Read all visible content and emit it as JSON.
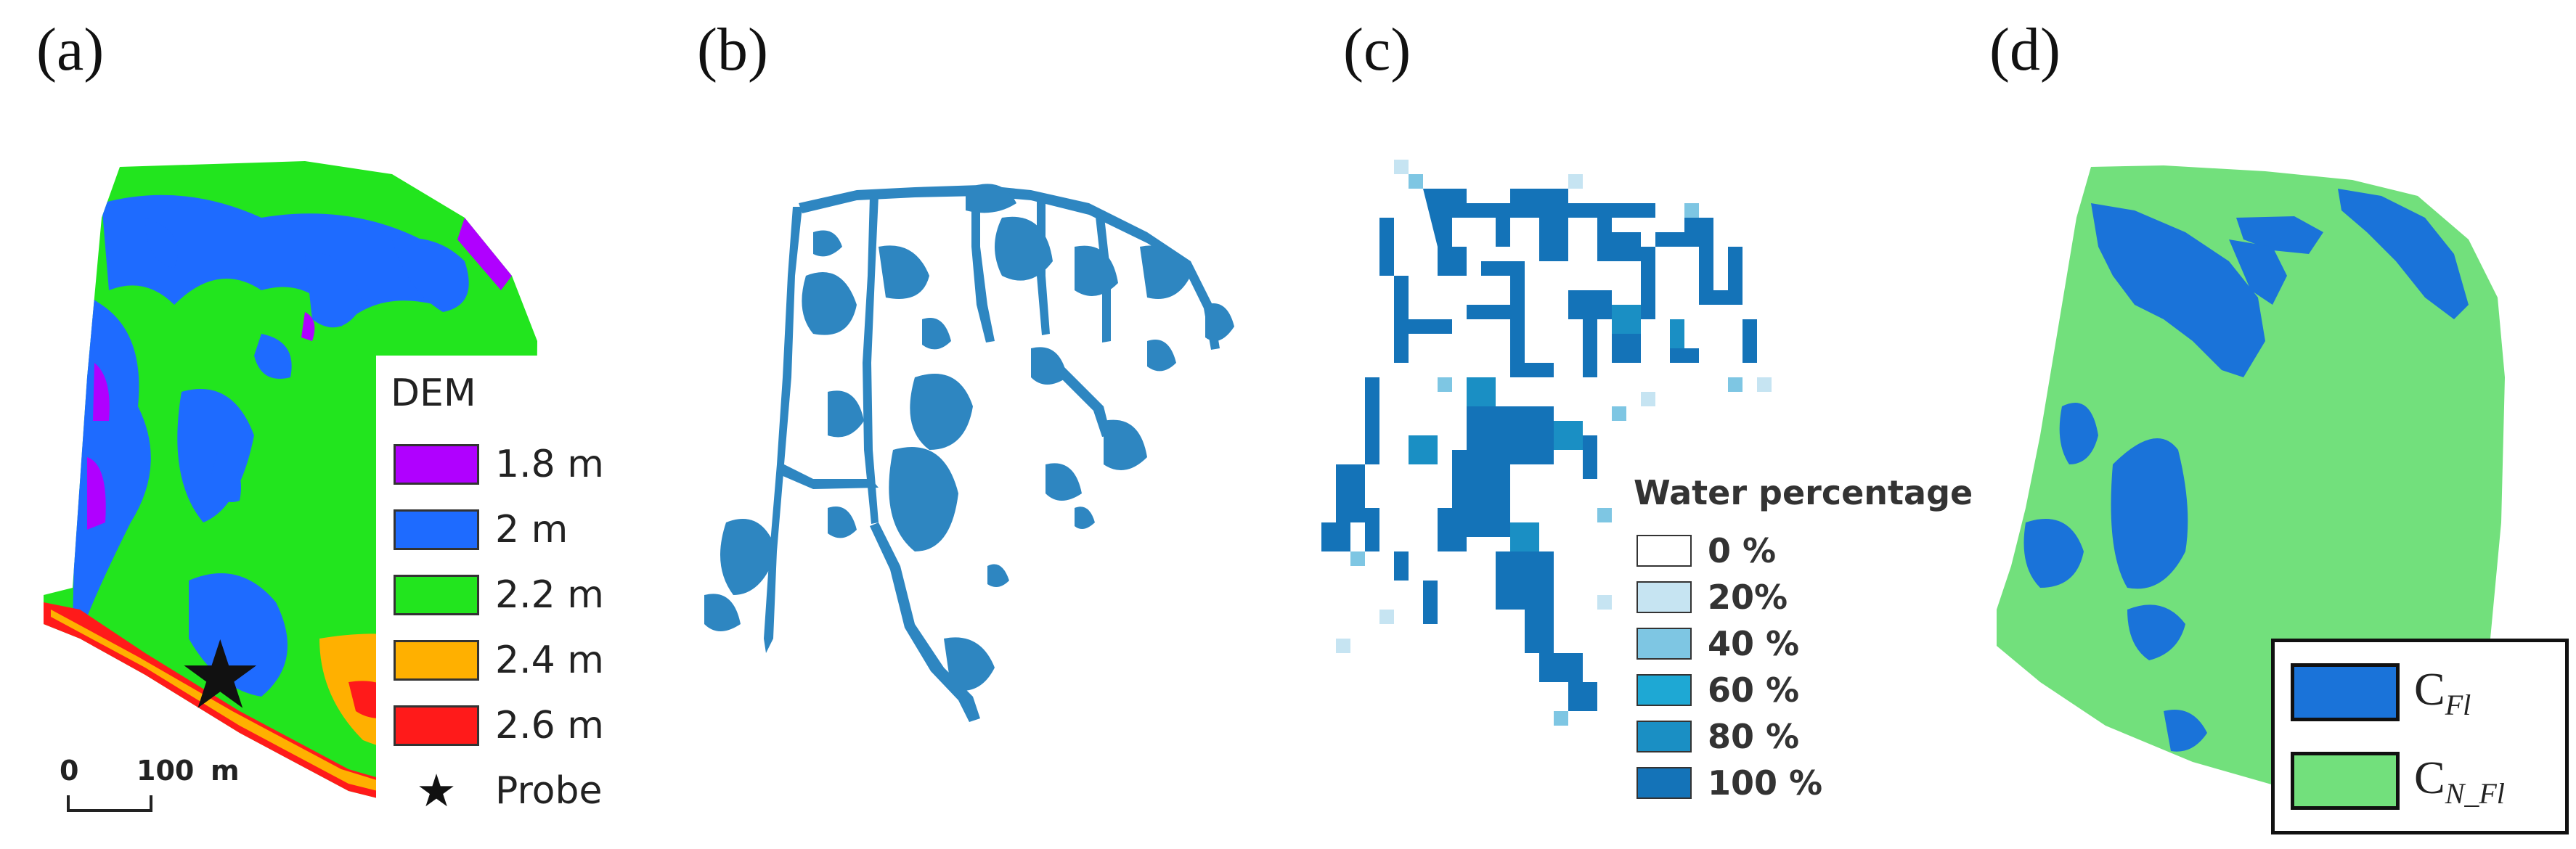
{
  "panels": {
    "a": {
      "label": "(a)",
      "legend_title": "DEM",
      "classes": [
        {
          "label": "1.8 m",
          "color": "#b000ff"
        },
        {
          "label": "2 m",
          "color": "#1e6bff"
        },
        {
          "label": "2.2 m",
          "color": "#22e51e"
        },
        {
          "label": "2.4 m",
          "color": "#ffb000"
        },
        {
          "label": "2.6 m",
          "color": "#ff1a1a"
        }
      ],
      "probe_label": "Probe",
      "scale_bar": {
        "start": "0",
        "end": "100",
        "unit": "m"
      }
    },
    "b": {
      "label": "(b)",
      "water_color": "#2e86c1"
    },
    "c": {
      "label": "(c)",
      "legend_title": "Water percentage",
      "classes": [
        {
          "label": "0 %",
          "color": "#ffffff"
        },
        {
          "label": "20%",
          "color": "#c6e4f2"
        },
        {
          "label": "40 %",
          "color": "#7ec6e3"
        },
        {
          "label": "60 %",
          "color": "#1ea8d4"
        },
        {
          "label": "80 %",
          "color": "#1a8fc4"
        },
        {
          "label": "100 %",
          "color": "#1473b8"
        }
      ]
    },
    "d": {
      "label": "(d)",
      "classes": [
        {
          "symbol": "C",
          "sub": "Fl",
          "color": "#1a73d9"
        },
        {
          "symbol": "C",
          "sub": "N_Fl",
          "color": "#72e07c"
        }
      ]
    }
  }
}
